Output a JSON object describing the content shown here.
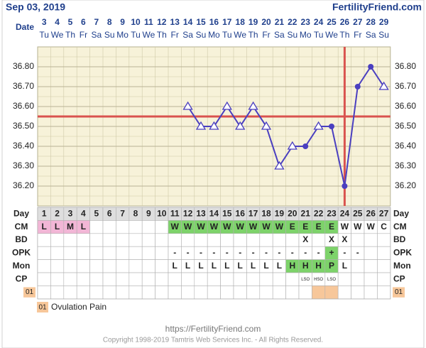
{
  "header": {
    "date": "Sep 03, 2019",
    "site": "FertilityFriend.com"
  },
  "chart_data": {
    "type": "line",
    "date_label": "Date",
    "categories": [
      "3",
      "4",
      "5",
      "6",
      "7",
      "8",
      "9",
      "10",
      "11",
      "12",
      "13",
      "14",
      "15",
      "16",
      "17",
      "18",
      "19",
      "20",
      "21",
      "22",
      "23",
      "24",
      "25",
      "26",
      "27",
      "28",
      "29"
    ],
    "weekdays": [
      "Tu",
      "We",
      "Th",
      "Fr",
      "Sa",
      "Su",
      "Mo",
      "Tu",
      "We",
      "Th",
      "Fr",
      "Sa",
      "Su",
      "Mo",
      "Tu",
      "We",
      "Th",
      "Fr",
      "Sa",
      "Su",
      "Mo",
      "Tu",
      "We",
      "Th",
      "Fr",
      "Sa",
      "Su"
    ],
    "values": [
      null,
      null,
      null,
      null,
      null,
      null,
      null,
      null,
      null,
      null,
      null,
      36.6,
      36.5,
      36.5,
      36.6,
      36.5,
      36.6,
      36.5,
      36.3,
      36.4,
      36.4,
      36.5,
      36.5,
      36.2,
      36.7,
      36.8,
      36.7
    ],
    "markers": [
      null,
      null,
      null,
      null,
      null,
      null,
      null,
      null,
      null,
      null,
      null,
      "triangle",
      "triangle",
      "triangle",
      "triangle",
      "triangle",
      "triangle",
      "triangle",
      "triangle",
      "triangle",
      "dot",
      "triangle",
      "dot",
      "dot",
      "dot",
      "dot",
      "triangle"
    ],
    "color": "#4a3fc0",
    "ylim": [
      36.1,
      36.9
    ],
    "yticks": [
      {
        "value": 36.2,
        "label": "36.20"
      },
      {
        "value": 36.3,
        "label": "36.30"
      },
      {
        "value": 36.4,
        "label": "36.40"
      },
      {
        "value": 36.5,
        "label": "36.50"
      },
      {
        "value": 36.6,
        "label": "36.60"
      },
      {
        "value": 36.7,
        "label": "36.70"
      },
      {
        "value": 36.8,
        "label": "36.80"
      }
    ],
    "grid": true,
    "coverline": 36.55,
    "ovulation_day": 24,
    "line_color_markers": "#d9534f"
  },
  "table": {
    "rows": [
      {
        "label": "Day",
        "cells": [
          1,
          2,
          3,
          4,
          5,
          6,
          7,
          8,
          9,
          10,
          11,
          12,
          13,
          14,
          15,
          16,
          17,
          18,
          19,
          20,
          21,
          22,
          23,
          24,
          25,
          26,
          27
        ],
        "colors": [
          "#dedede",
          "#dedede",
          "#dedede",
          "#dedede",
          "#dedede",
          "#dedede",
          "#dedede",
          "#dedede",
          "#dedede",
          "#dedede",
          "#dedede",
          "#dedede",
          "#dedede",
          "#dedede",
          "#dedede",
          "#dedede",
          "#dedede",
          "#dedede",
          "#dedede",
          "#dedede",
          "#dedede",
          "#dedede",
          "#dedede",
          "#dedede",
          "#dedede",
          "#dedede",
          "#dedede"
        ]
      },
      {
        "label": "CM",
        "cells": [
          "L",
          "L",
          "M",
          "L",
          null,
          null,
          null,
          null,
          null,
          null,
          "W",
          "W",
          "W",
          "W",
          "W",
          "W",
          "W",
          "W",
          "W",
          "E",
          "E",
          "E",
          "E",
          "W",
          "W",
          "W",
          "C"
        ],
        "colors": [
          "#f2b6d6",
          "#f2b6d6",
          "#f2b6d6",
          "#f2b6d6",
          null,
          null,
          null,
          null,
          null,
          null,
          "#7dd36a",
          "#7dd36a",
          "#7dd36a",
          "#7dd36a",
          "#7dd36a",
          "#7dd36a",
          "#7dd36a",
          "#7dd36a",
          "#7dd36a",
          "#7dd36a",
          "#7dd36a",
          "#7dd36a",
          "#7dd36a",
          null,
          null,
          null,
          null
        ]
      },
      {
        "label": "BD",
        "cells": [
          null,
          null,
          null,
          null,
          null,
          null,
          null,
          null,
          null,
          null,
          null,
          null,
          null,
          null,
          null,
          null,
          null,
          null,
          null,
          null,
          "X",
          null,
          "X",
          "X",
          null,
          null,
          null
        ]
      },
      {
        "label": "OPK",
        "cells": [
          null,
          null,
          null,
          null,
          null,
          null,
          null,
          null,
          null,
          null,
          "-",
          "-",
          "-",
          "-",
          "-",
          "-",
          "-",
          "-",
          "-",
          "-",
          "-",
          "-",
          "+",
          "-",
          "-",
          null,
          null
        ],
        "colors": [
          null,
          null,
          null,
          null,
          null,
          null,
          null,
          null,
          null,
          null,
          null,
          null,
          null,
          null,
          null,
          null,
          null,
          null,
          null,
          null,
          null,
          null,
          "#7dd36a",
          null,
          null,
          null,
          null
        ]
      },
      {
        "label": "Mon",
        "cells": [
          null,
          null,
          null,
          null,
          null,
          null,
          null,
          null,
          null,
          null,
          "L",
          "L",
          "L",
          "L",
          "L",
          "L",
          "L",
          "L",
          "L",
          "H",
          "H",
          "H",
          "P",
          "L",
          null,
          null,
          null
        ],
        "colors": [
          null,
          null,
          null,
          null,
          null,
          null,
          null,
          null,
          null,
          null,
          null,
          null,
          null,
          null,
          null,
          null,
          null,
          null,
          null,
          "#7dd36a",
          "#7dd36a",
          "#7dd36a",
          "#7dd36a",
          null,
          null,
          null,
          null
        ]
      },
      {
        "label": "CP",
        "small": true,
        "cells": [
          null,
          null,
          null,
          null,
          null,
          null,
          null,
          null,
          null,
          null,
          null,
          null,
          null,
          null,
          null,
          null,
          null,
          null,
          null,
          null,
          "LSO",
          "HSO",
          "LSO",
          null,
          null,
          null,
          null
        ]
      },
      {
        "label": "01",
        "label_color": "#f7c79a",
        "cells": [
          null,
          null,
          null,
          null,
          null,
          null,
          null,
          null,
          null,
          null,
          null,
          null,
          null,
          null,
          null,
          null,
          null,
          null,
          null,
          null,
          null,
          null,
          null,
          null,
          null,
          null,
          null
        ],
        "colors": [
          null,
          null,
          null,
          null,
          null,
          null,
          null,
          null,
          null,
          null,
          null,
          null,
          null,
          null,
          null,
          null,
          null,
          null,
          null,
          null,
          null,
          "#f7c79a",
          "#f7c79a",
          null,
          null,
          null,
          null
        ]
      }
    ]
  },
  "legend": {
    "code": "01",
    "label": "Ovulation Pain"
  },
  "footer": {
    "url": "https://FertilityFriend.com",
    "copyright": "Copyright 1998-2019 Tamtris Web Services Inc. - All Rights Reserved."
  }
}
